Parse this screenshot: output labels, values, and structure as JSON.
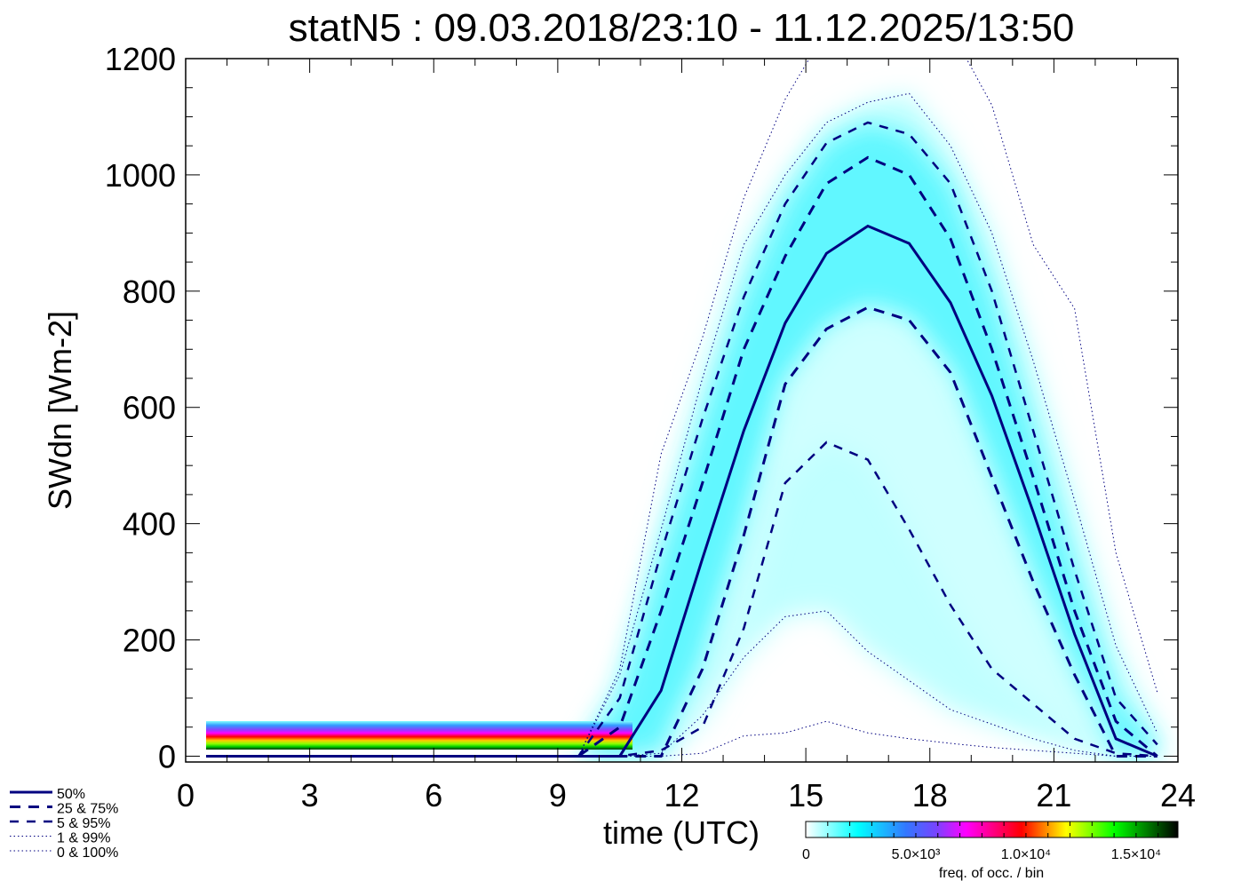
{
  "chart_data": {
    "type": "line",
    "title": "statN5 : 09.03.2018/23:10 - 11.12.2025/13:50",
    "xlabel": "time (UTC)",
    "ylabel": "SWdn [Wm-2]",
    "xlim": [
      0,
      24
    ],
    "ylim": [
      -10,
      1200
    ],
    "xticks": [
      "0",
      "3",
      "6",
      "9",
      "12",
      "15",
      "18",
      "21",
      "24"
    ],
    "yticks": [
      "0",
      "200",
      "400",
      "600",
      "800",
      "1000",
      "1200"
    ],
    "x": [
      0.5,
      1.5,
      2.5,
      3.5,
      4.5,
      5.5,
      6.5,
      7.5,
      8.5,
      9.5,
      10.5,
      11.5,
      12.5,
      13.5,
      14.5,
      15.5,
      16.5,
      17.5,
      18.5,
      19.5,
      20.5,
      21.5,
      22.5,
      23.5
    ],
    "series": [
      {
        "name": "0%",
        "style": "dotted",
        "values": [
          0,
          0,
          0,
          0,
          0,
          0,
          0,
          0,
          0,
          0,
          0,
          0,
          5,
          35,
          40,
          60,
          40,
          30,
          22,
          15,
          10,
          5,
          0,
          0
        ]
      },
      {
        "name": "1%",
        "style": "dotted",
        "values": [
          0,
          0,
          0,
          0,
          0,
          0,
          0,
          0,
          0,
          0,
          0,
          5,
          70,
          170,
          240,
          250,
          180,
          130,
          80,
          55,
          30,
          10,
          0,
          0
        ]
      },
      {
        "name": "5%",
        "style": "dashed-short",
        "values": [
          0,
          0,
          0,
          0,
          0,
          0,
          0,
          0,
          0,
          0,
          0,
          10,
          50,
          220,
          470,
          540,
          510,
          390,
          260,
          150,
          90,
          30,
          5,
          0
        ]
      },
      {
        "name": "25%",
        "style": "dashed",
        "values": [
          0,
          0,
          0,
          0,
          0,
          0,
          0,
          0,
          0,
          0,
          0,
          0,
          150,
          380,
          640,
          735,
          772,
          750,
          660,
          480,
          300,
          140,
          0,
          0
        ]
      },
      {
        "name": "50%",
        "style": "solid",
        "values": [
          0,
          0,
          0,
          0,
          0,
          0,
          0,
          0,
          0,
          0,
          0,
          113,
          340,
          560,
          745,
          865,
          912,
          882,
          780,
          620,
          420,
          210,
          30,
          0
        ]
      },
      {
        "name": "75%",
        "style": "dashed",
        "values": [
          0,
          0,
          0,
          0,
          0,
          0,
          0,
          0,
          0,
          0,
          50,
          250,
          470,
          700,
          860,
          985,
          1030,
          1000,
          890,
          700,
          480,
          250,
          60,
          0
        ]
      },
      {
        "name": "95%",
        "style": "dashed-short",
        "values": [
          0,
          0,
          0,
          0,
          0,
          0,
          0,
          0,
          0,
          0,
          100,
          350,
          580,
          790,
          950,
          1055,
          1090,
          1070,
          985,
          800,
          560,
          320,
          100,
          20
        ]
      },
      {
        "name": "99%",
        "style": "dotted",
        "values": [
          0,
          0,
          0,
          0,
          0,
          0,
          0,
          0,
          0,
          0,
          140,
          390,
          650,
          880,
          1000,
          1090,
          1125,
          1140,
          1050,
          900,
          680,
          440,
          190,
          40
        ]
      },
      {
        "name": "100%",
        "style": "dotted",
        "values": [
          0,
          0,
          0,
          0,
          0,
          0,
          0,
          0,
          0,
          0,
          150,
          520,
          720,
          960,
          1130,
          1250,
          1300,
          1300,
          1250,
          1120,
          880,
          770,
          350,
          110
        ]
      }
    ],
    "legend": {
      "placement": "bottom-left",
      "entries": [
        "50%",
        "25 &  75%",
        "5 &  95%",
        "1 &  99%",
        "0 & 100%"
      ]
    },
    "colorbar": {
      "label": "freq. of occ. / bin",
      "range": [
        0,
        16900
      ],
      "ticks": [
        {
          "value": 0,
          "label": "0"
        },
        {
          "value": 5000,
          "label": "5.0×10³"
        },
        {
          "value": 10000,
          "label": "1.0×10⁴"
        },
        {
          "value": 15000,
          "label": "1.5×10⁴"
        }
      ]
    },
    "colors": {
      "line": "#000080",
      "heat_low": "#00ffff"
    }
  }
}
